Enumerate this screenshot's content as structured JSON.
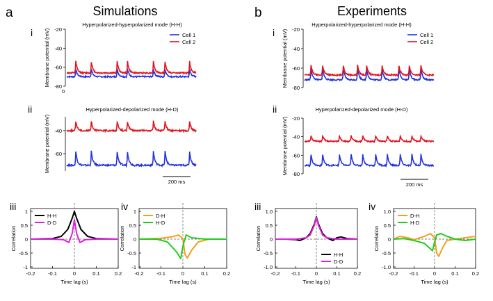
{
  "figure": {
    "a": {
      "letter": "a",
      "title": "Simulations"
    },
    "b": {
      "letter": "b",
      "title": "Experiments"
    }
  },
  "colors": {
    "cell1": "#2233dd",
    "cell2": "#e0141e",
    "hh": "#000000",
    "dd": "#dd22dd",
    "dh": "#f0a020",
    "hd": "#22cc22"
  },
  "chart_data": [
    {
      "id": "a-i",
      "type": "line",
      "roman": "i",
      "title": "Hyperpolarized-hyperpolarized mode (H-H)",
      "ylabel": "Membrane potential (mV)",
      "yticks": [
        "-20",
        "-40",
        "-60",
        "-80"
      ],
      "ylim": [
        -80,
        -20
      ],
      "extra_tick": "0",
      "legend": [
        "Cell 1",
        "Cell 2"
      ],
      "series": [
        {
          "name": "Cell 1",
          "baseline": -70,
          "amp": 8,
          "spikes": [
            0.07,
            0.19,
            0.39,
            0.47,
            0.67,
            0.76,
            0.95
          ]
        },
        {
          "name": "Cell 2",
          "baseline": -66,
          "amp": 12,
          "spikes": [
            0.07,
            0.19,
            0.39,
            0.47,
            0.67,
            0.76,
            0.95
          ]
        }
      ]
    },
    {
      "id": "a-ii",
      "type": "line",
      "roman": "ii",
      "title": "Hyperpolarized-depolarized mode (H-D)",
      "ylabel": "Membrane potential (mV)",
      "yticks": [
        "-40",
        "-60"
      ],
      "ylim": [
        -75,
        -28
      ],
      "scalebar": "200 ms",
      "series": [
        {
          "name": "Cell 1",
          "baseline": -70,
          "amp": 12,
          "spikes": [
            0.07,
            0.19,
            0.39,
            0.47,
            0.67,
            0.76,
            0.95
          ]
        },
        {
          "name": "Cell 2",
          "baseline": -40,
          "amp": 8,
          "spikes": [
            0.07,
            0.19,
            0.39,
            0.47,
            0.67,
            0.76,
            0.95
          ]
        }
      ]
    },
    {
      "id": "b-i",
      "type": "line",
      "roman": "i",
      "title": "Hyperpolarized-hyperpolarized mode (H-H)",
      "ylabel": "Membrane potential (mV)",
      "yticks": [
        "-20",
        "-40",
        "-60",
        "-80"
      ],
      "ylim": [
        -80,
        -20
      ],
      "legend": [
        "Cell 1",
        "Cell 2"
      ],
      "series": [
        {
          "name": "Cell 1",
          "baseline": -72,
          "amp": 12,
          "spikes": [
            0.05,
            0.14,
            0.3,
            0.41,
            0.48,
            0.6,
            0.73,
            0.81,
            0.9
          ]
        },
        {
          "name": "Cell 2",
          "baseline": -67,
          "amp": 10,
          "spikes": [
            0.05,
            0.14,
            0.3,
            0.41,
            0.48,
            0.6,
            0.73,
            0.81,
            0.9
          ]
        }
      ]
    },
    {
      "id": "b-ii",
      "type": "line",
      "roman": "ii",
      "title": "Hyperpolarized-depolarized mode (H-D)",
      "ylabel": "Membrane potential (mV)",
      "yticks": [
        "-20",
        "-40",
        "-60",
        "-80"
      ],
      "ylim": [
        -80,
        -20
      ],
      "scalebar": "200 ms",
      "series": [
        {
          "name": "Cell 1",
          "baseline": -71,
          "amp": 12,
          "spikes": [
            0.05,
            0.14,
            0.27,
            0.36,
            0.45,
            0.55,
            0.64,
            0.74,
            0.83,
            0.9
          ]
        },
        {
          "name": "Cell 2",
          "baseline": -45,
          "amp": 6,
          "spikes": [
            0.05,
            0.14,
            0.27,
            0.36,
            0.45,
            0.55,
            0.64,
            0.74,
            0.83,
            0.9
          ]
        }
      ]
    },
    {
      "id": "a-iii",
      "type": "line",
      "roman": "iii",
      "xlabel": "Time lag (s)",
      "ylabel": "Correlation",
      "xticks": [
        "-0.2",
        "-0.1",
        "0",
        "0.1",
        "0.2"
      ],
      "yticks": [
        "1",
        "0.5",
        "0",
        "-0.5",
        "-1"
      ],
      "ylim": [
        -1.05,
        1.1
      ],
      "legend": [
        "H-H",
        "D-D"
      ],
      "series": [
        {
          "name": "H-H",
          "points": [
            [
              -0.2,
              0
            ],
            [
              -0.15,
              0.01
            ],
            [
              -0.1,
              0.02
            ],
            [
              -0.06,
              0.1
            ],
            [
              -0.03,
              0.35
            ],
            [
              -0.01,
              0.75
            ],
            [
              0,
              1
            ],
            [
              0.01,
              0.75
            ],
            [
              0.03,
              0.35
            ],
            [
              0.06,
              0.1
            ],
            [
              0.1,
              0.02
            ],
            [
              0.15,
              0.01
            ],
            [
              0.2,
              0
            ]
          ]
        },
        {
          "name": "D-D",
          "points": [
            [
              -0.2,
              0
            ],
            [
              -0.1,
              0
            ],
            [
              -0.05,
              -0.02
            ],
            [
              -0.025,
              -0.12
            ],
            [
              -0.01,
              0.2
            ],
            [
              0,
              0.7
            ],
            [
              0.01,
              0.2
            ],
            [
              0.025,
              -0.12
            ],
            [
              0.05,
              -0.02
            ],
            [
              0.1,
              0
            ],
            [
              0.2,
              0
            ]
          ]
        }
      ]
    },
    {
      "id": "a-iv",
      "type": "line",
      "roman": "iv",
      "xlabel": "Time lag (s)",
      "ylabel": "Correlation",
      "xticks": [
        "-0.2",
        "-0.1",
        "0",
        "0.1",
        "0.2"
      ],
      "yticks": [
        "1",
        "0.5",
        "0",
        "-0.5",
        "-1"
      ],
      "ylim": [
        -1.05,
        1.1
      ],
      "legend": [
        "D-H",
        "H-D"
      ],
      "series": [
        {
          "name": "D-H",
          "points": [
            [
              -0.2,
              0
            ],
            [
              -0.1,
              0.03
            ],
            [
              -0.05,
              0.08
            ],
            [
              -0.02,
              0.15
            ],
            [
              0,
              0.02
            ],
            [
              0.01,
              -0.55
            ],
            [
              0.02,
              -0.68
            ],
            [
              0.04,
              -0.4
            ],
            [
              0.07,
              -0.1
            ],
            [
              0.12,
              0
            ],
            [
              0.2,
              0
            ]
          ]
        },
        {
          "name": "H-D",
          "points": [
            [
              -0.2,
              0
            ],
            [
              -0.12,
              0
            ],
            [
              -0.07,
              -0.1
            ],
            [
              -0.03,
              -0.45
            ],
            [
              -0.01,
              -0.7
            ],
            [
              0,
              -0.25
            ],
            [
              0.015,
              0.15
            ],
            [
              0.04,
              0.05
            ],
            [
              0.1,
              0
            ],
            [
              0.2,
              0
            ]
          ]
        }
      ]
    },
    {
      "id": "b-iii",
      "type": "line",
      "roman": "iii",
      "xlabel": "Time lag (s)",
      "ylabel": "Correlation",
      "xticks": [
        "-0.2",
        "-0.1",
        "0",
        "0.1",
        "0.2"
      ],
      "yticks": [
        "1.0",
        "0.5",
        "0",
        "-0.5",
        "-1.0"
      ],
      "ylim": [
        -1.05,
        1.1
      ],
      "legend": [
        "H-H",
        "D-D"
      ],
      "series": [
        {
          "name": "H-H",
          "points": [
            [
              -0.2,
              0
            ],
            [
              -0.15,
              0
            ],
            [
              -0.1,
              -0.02
            ],
            [
              -0.08,
              -0.05
            ],
            [
              -0.05,
              0.05
            ],
            [
              -0.03,
              0.2
            ],
            [
              -0.01,
              0.55
            ],
            [
              0,
              0.8
            ],
            [
              0.01,
              0.55
            ],
            [
              0.03,
              0.2
            ],
            [
              0.05,
              0.05
            ],
            [
              0.08,
              -0.05
            ],
            [
              0.1,
              0.05
            ],
            [
              0.12,
              0.08
            ],
            [
              0.15,
              0.02
            ],
            [
              0.2,
              0
            ]
          ]
        },
        {
          "name": "D-D",
          "points": [
            [
              -0.2,
              0
            ],
            [
              -0.1,
              0
            ],
            [
              -0.05,
              0.05
            ],
            [
              -0.03,
              0.15
            ],
            [
              -0.01,
              0.5
            ],
            [
              0,
              0.78
            ],
            [
              0.01,
              0.5
            ],
            [
              0.03,
              0.15
            ],
            [
              0.05,
              0.05
            ],
            [
              0.1,
              0
            ],
            [
              0.2,
              0
            ]
          ]
        }
      ]
    },
    {
      "id": "b-iv",
      "type": "line",
      "roman": "iv",
      "xlabel": "Time lag (s)",
      "ylabel": "Correlation",
      "xticks": [
        "-0.2",
        "-0.1",
        "0",
        "0.1",
        "0.2"
      ],
      "yticks": [
        "1.0",
        "0.5",
        "0",
        "-0.5",
        "-1.0"
      ],
      "ylim": [
        -1.05,
        1.1
      ],
      "legend": [
        "D-H",
        "H-D"
      ],
      "series": [
        {
          "name": "D-H",
          "points": [
            [
              -0.2,
              0
            ],
            [
              -0.17,
              0.1
            ],
            [
              -0.13,
              0.05
            ],
            [
              -0.1,
              -0.02
            ],
            [
              -0.05,
              0.1
            ],
            [
              -0.02,
              0.2
            ],
            [
              0,
              0.05
            ],
            [
              0.01,
              -0.5
            ],
            [
              0.02,
              -0.62
            ],
            [
              0.04,
              -0.3
            ],
            [
              0.06,
              -0.05
            ],
            [
              0.1,
              0
            ],
            [
              0.15,
              0.05
            ],
            [
              0.2,
              0.1
            ]
          ]
        },
        {
          "name": "H-D",
          "points": [
            [
              -0.2,
              0
            ],
            [
              -0.15,
              0.02
            ],
            [
              -0.1,
              -0.05
            ],
            [
              -0.05,
              -0.15
            ],
            [
              -0.02,
              -0.35
            ],
            [
              -0.01,
              -0.42
            ],
            [
              0,
              -0.1
            ],
            [
              0.01,
              0.15
            ],
            [
              0.03,
              0.2
            ],
            [
              0.06,
              0.1
            ],
            [
              0.1,
              0
            ],
            [
              0.15,
              -0.05
            ],
            [
              0.2,
              0
            ]
          ]
        }
      ]
    }
  ]
}
